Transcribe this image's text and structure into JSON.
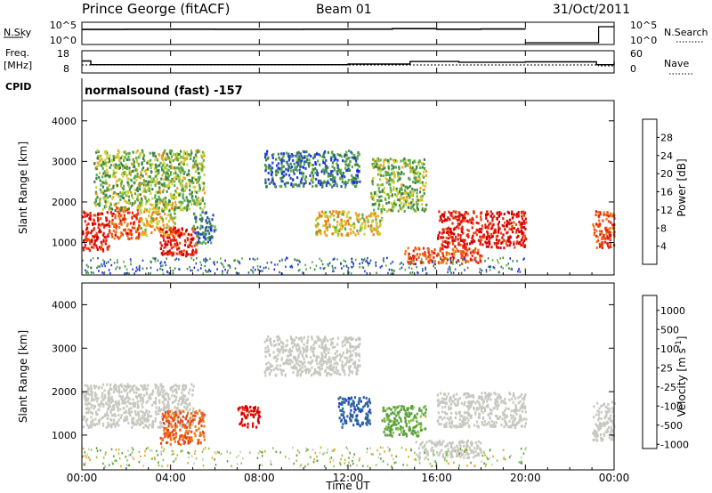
{
  "header": {
    "station": "Prince George (fitACF)",
    "beam": "Beam 01",
    "date": "31/Oct/2011"
  },
  "top_strip": {
    "left_label": "N.Sky",
    "left_ticks": [
      "10^5",
      "10^0"
    ],
    "right_label": "N.Search",
    "right_ticks": [
      "10^5",
      "10^0"
    ]
  },
  "freq_strip": {
    "left_label": "Freq.",
    "left_unit": "[MHz]",
    "left_ticks": [
      "18",
      "8"
    ],
    "right_label": "Nave",
    "right_ticks": [
      "60",
      "0"
    ]
  },
  "cpid": {
    "label": "CPID",
    "value": "normalsound (fast) -157"
  },
  "colors": {
    "power": [
      "#1e1eff",
      "#2346c8",
      "#3c8246",
      "#5aaa4b",
      "#c8d232",
      "#f0a01e",
      "#f07814",
      "#f04b0f",
      "#e61e0f",
      "#d20000"
    ],
    "velocity": [
      "#1e3cc8",
      "#2d64a0",
      "#3c825a",
      "#5aa03c",
      "#8cc84b",
      "#c8c8c0",
      "#f0a01e",
      "#f07814",
      "#e64614",
      "#dc0000"
    ]
  },
  "chart_data": [
    {
      "type": "line",
      "xlabel": "",
      "ylabel": "",
      "x_ticks": [
        "00:00",
        "04:00",
        "08:00",
        "12:00",
        "16:00",
        "20:00",
        "00:00"
      ],
      "series": [
        {
          "name": "N.Sky",
          "x": [
            0,
            2,
            4,
            6,
            8,
            10,
            12,
            14,
            16,
            18,
            20
          ],
          "y": [
            5200,
            5800,
            6300,
            5900,
            6100,
            6400,
            6600,
            8800,
            6200,
            7000,
            6800
          ]
        },
        {
          "name": "N.Search",
          "x": [
            20,
            22.8,
            23.3,
            24
          ],
          "y": [
            1,
            1,
            32000,
            30000
          ]
        }
      ]
    },
    {
      "type": "line",
      "xlabel": "",
      "ylabel": "",
      "series": [
        {
          "name": "Freq.",
          "x": [
            0,
            0.4,
            4,
            12,
            14.8,
            17,
            20,
            23.2,
            24
          ],
          "y": [
            13.5,
            11.5,
            11.5,
            11.8,
            13.2,
            12.8,
            13,
            11.5,
            13
          ]
        },
        {
          "name": "Nave",
          "x": [
            0,
            12,
            20,
            23.3,
            24
          ],
          "y": [
            20,
            20,
            20,
            17,
            31
          ]
        }
      ]
    },
    {
      "type": "heatmap",
      "ylabel": "Slant Range [km]",
      "y_ticks": [
        "1000",
        "2000",
        "3000",
        "4000"
      ],
      "ylim": [
        200,
        4500
      ],
      "colorbar_label": "Power [dB]",
      "colorbar_ticks": [
        "4",
        "8",
        "12",
        "16",
        "20",
        "24",
        "28"
      ],
      "regions": [
        {
          "x": [
            0,
            1.2
          ],
          "range": [
            800,
            1800
          ],
          "power": 28
        },
        {
          "x": [
            1.2,
            2.6
          ],
          "range": [
            1100,
            1900
          ],
          "power": 24
        },
        {
          "x": [
            2.6,
            4.2
          ],
          "range": [
            1200,
            1900
          ],
          "power": 16
        },
        {
          "x": [
            3.5,
            5.2
          ],
          "range": [
            700,
            1400
          ],
          "power": 28
        },
        {
          "x": [
            5.0,
            6.0
          ],
          "range": [
            1000,
            1800
          ],
          "power": 8
        },
        {
          "x": [
            0.5,
            5.5
          ],
          "range": [
            1800,
            3300
          ],
          "power": 12
        },
        {
          "x": [
            8.2,
            12.5
          ],
          "range": [
            2400,
            3300
          ],
          "power": 8
        },
        {
          "x": [
            10.5,
            13.5
          ],
          "range": [
            1200,
            1800
          ],
          "power": 16
        },
        {
          "x": [
            14.5,
            18.0
          ],
          "range": [
            500,
            900
          ],
          "power": 24
        },
        {
          "x": [
            16.0,
            20.0
          ],
          "range": [
            900,
            1800
          ],
          "power": 28
        },
        {
          "x": [
            13.0,
            15.5
          ],
          "range": [
            1800,
            3100
          ],
          "power": 12
        },
        {
          "x": [
            23.0,
            24.0
          ],
          "range": [
            900,
            1800
          ],
          "power": 24
        }
      ]
    },
    {
      "type": "heatmap",
      "ylabel": "Slant Range [km]",
      "xlabel": "Time UT",
      "y_ticks": [
        "1000",
        "2000",
        "3000",
        "4000"
      ],
      "ylim": [
        200,
        4500
      ],
      "colorbar_label": "Velocity [m s^-1]",
      "colorbar_ticks": [
        "1000",
        "500",
        "100",
        "25",
        "-25",
        "-100",
        "-500",
        "-1000"
      ],
      "regions": [
        {
          "x": [
            0,
            5.0
          ],
          "range": [
            1200,
            2200
          ],
          "velocity": 0
        },
        {
          "x": [
            3.5,
            5.5
          ],
          "range": [
            800,
            1600
          ],
          "velocity": -500
        },
        {
          "x": [
            7.0,
            8.0
          ],
          "range": [
            1200,
            1700
          ],
          "velocity": -1000
        },
        {
          "x": [
            8.2,
            12.5
          ],
          "range": [
            2400,
            3300
          ],
          "velocity": 0
        },
        {
          "x": [
            11.5,
            13.0
          ],
          "range": [
            1200,
            1900
          ],
          "velocity": 500
        },
        {
          "x": [
            13.5,
            15.5
          ],
          "range": [
            1000,
            1700
          ],
          "velocity": 100
        },
        {
          "x": [
            15.0,
            18.0
          ],
          "range": [
            500,
            900
          ],
          "velocity": 0
        },
        {
          "x": [
            16.0,
            20.0
          ],
          "range": [
            1200,
            2000
          ],
          "velocity": 0
        },
        {
          "x": [
            23.0,
            24.0
          ],
          "range": [
            900,
            1800
          ],
          "velocity": 0
        }
      ]
    }
  ]
}
